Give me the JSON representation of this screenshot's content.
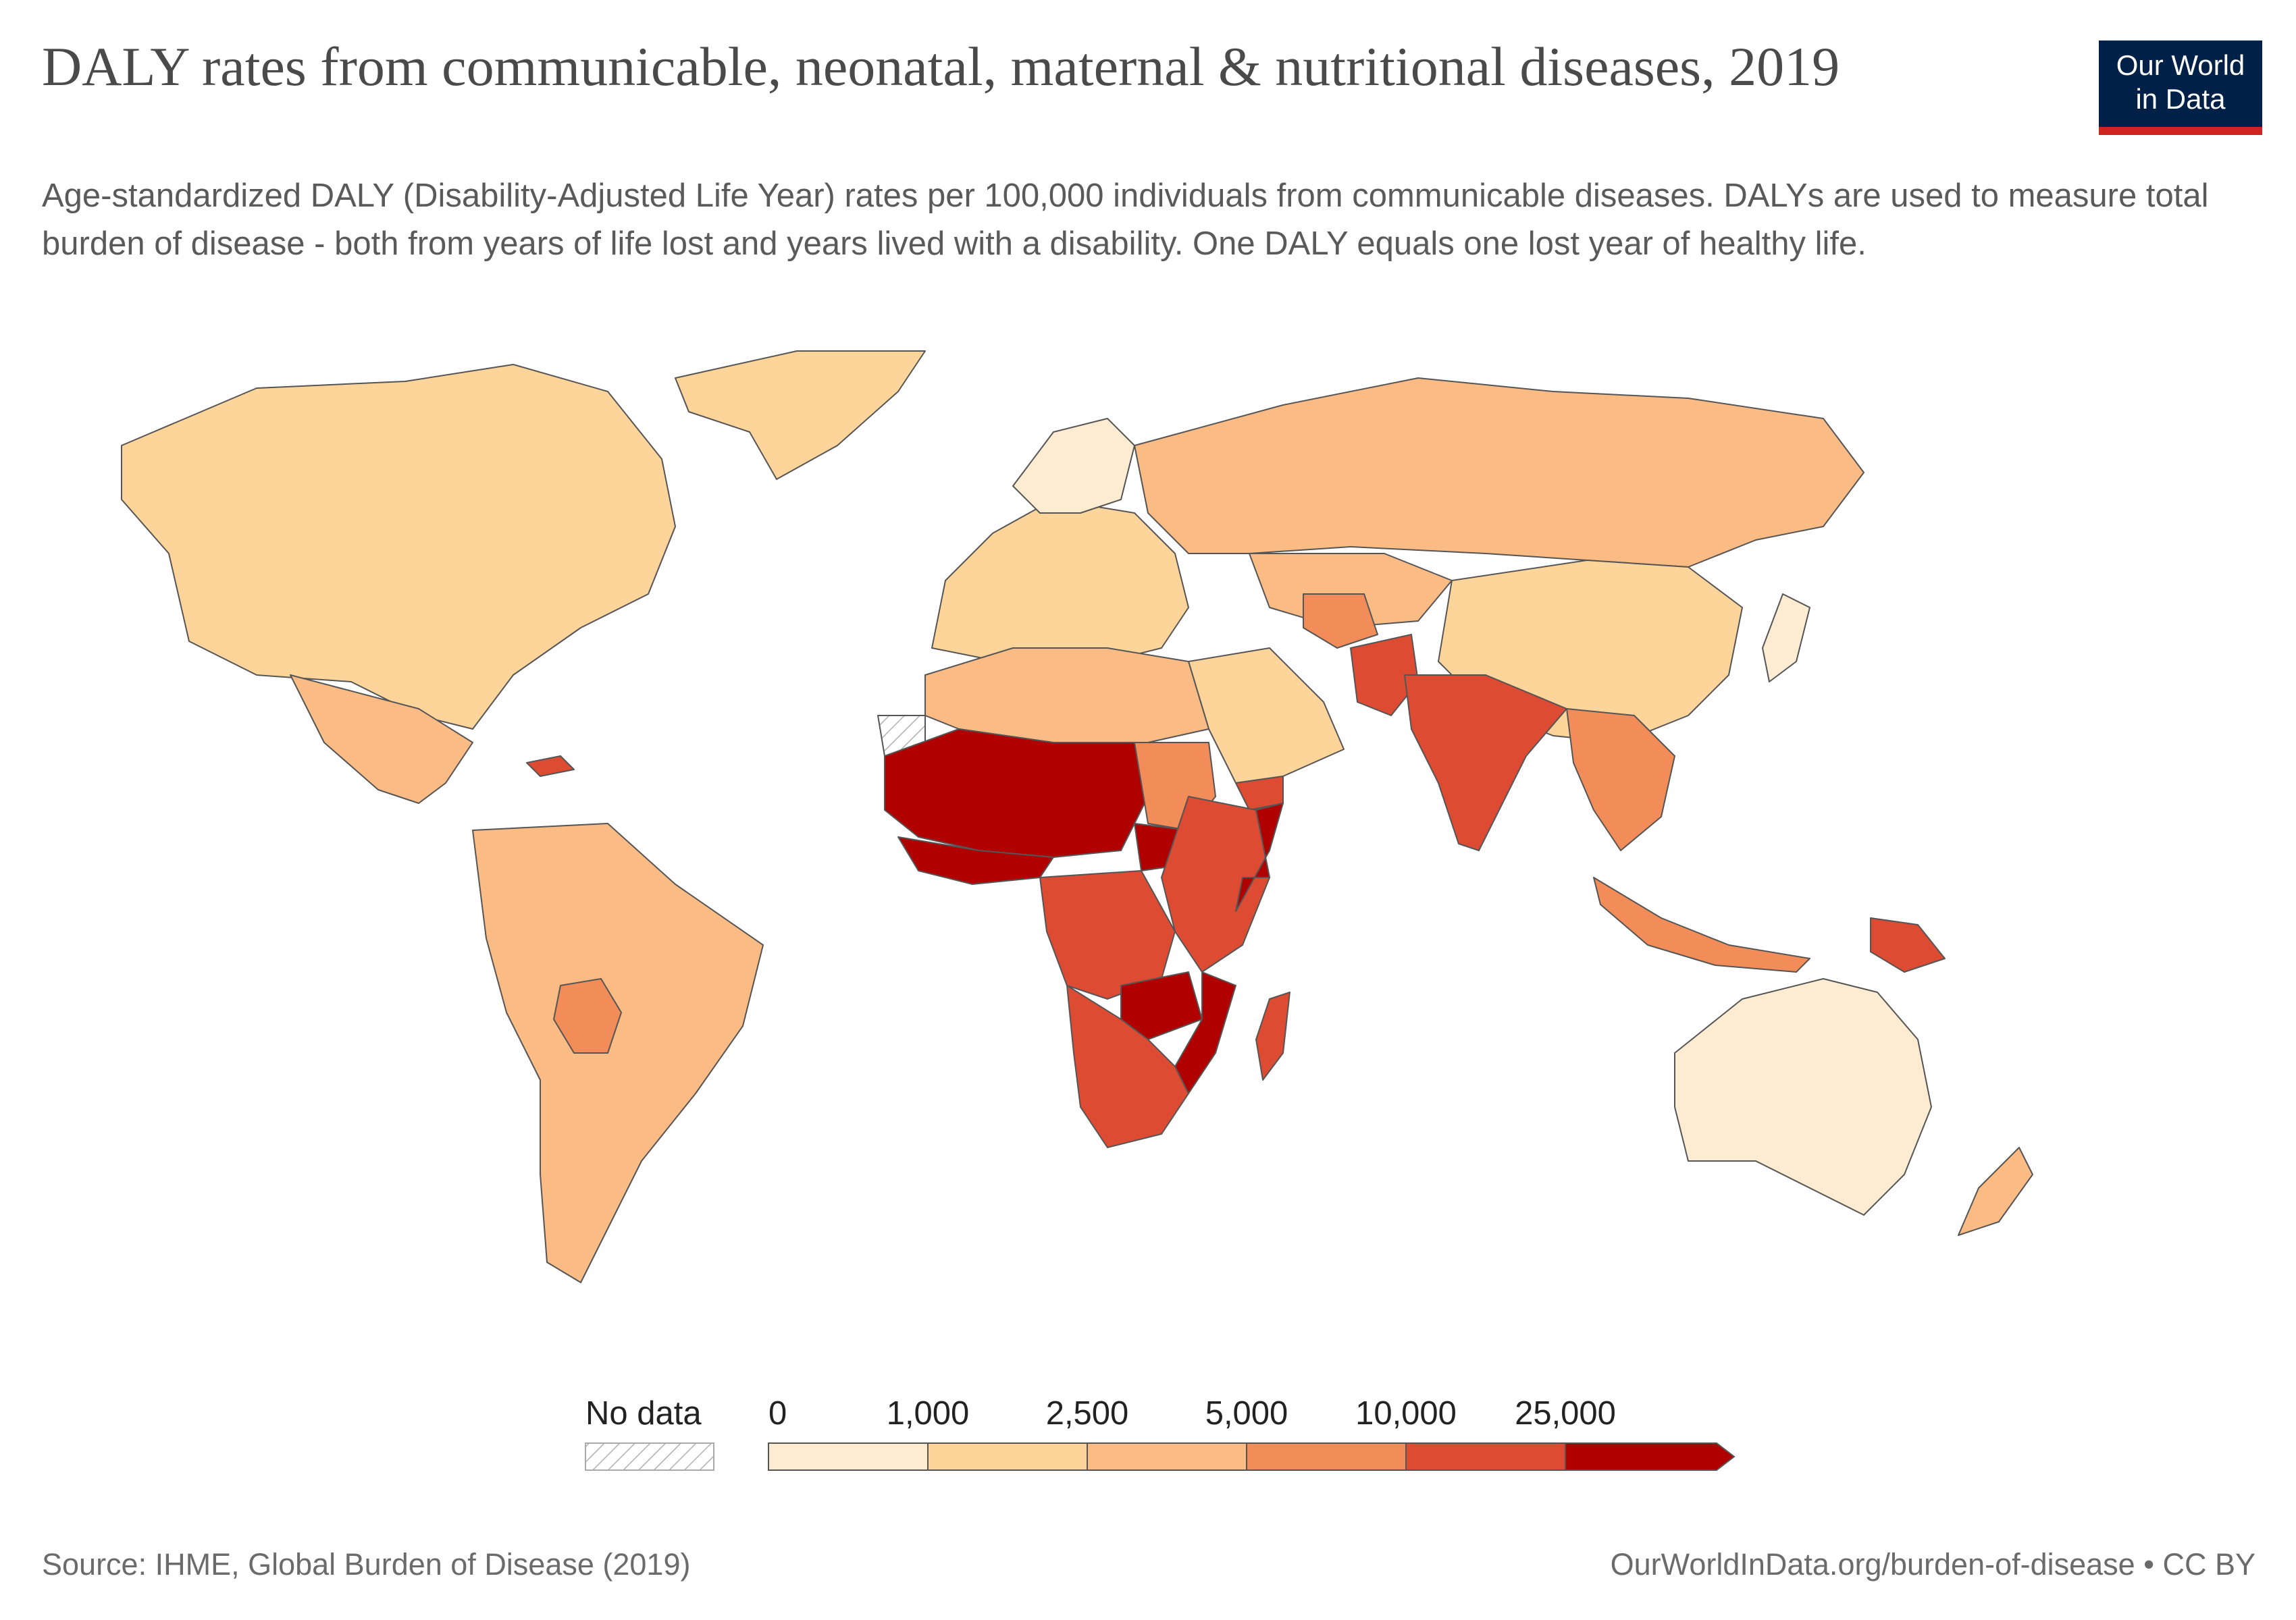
{
  "header": {
    "title": "DALY rates from communicable, neonatal, maternal & nutritional diseases, 2019",
    "subtitle": "Age-standardized DALY (Disability-Adjusted Life Year) rates per 100,000 individuals from communicable diseases. DALYs are used to measure total burden of disease - both from years of life lost and years lived with a disability. One DALY equals one lost year of healthy life."
  },
  "logo": {
    "line1": "Our World",
    "line2": "in Data",
    "bg_color": "#002147",
    "accent_color": "#ce261e"
  },
  "legend": {
    "no_data_label": "No data",
    "ticks": [
      "0",
      "1,000",
      "2,500",
      "5,000",
      "10,000",
      "25,000"
    ],
    "bins": [
      {
        "from": 0,
        "to": 1000,
        "color": "#fdebd2"
      },
      {
        "from": 1000,
        "to": 2500,
        "color": "#fdd59b"
      },
      {
        "from": 2500,
        "to": 5000,
        "color": "#fbbb84"
      },
      {
        "from": 5000,
        "to": 10000,
        "color": "#f28c58"
      },
      {
        "from": 10000,
        "to": 25000,
        "color": "#dd4b32"
      },
      {
        "from": 25000,
        "to": null,
        "color": "#b10000"
      }
    ]
  },
  "map_data": {
    "regions": [
      {
        "name": "Australia",
        "bin": 0
      },
      {
        "name": "Northern Europe",
        "bin": 0
      },
      {
        "name": "Japan",
        "bin": 0
      },
      {
        "name": "North America",
        "bin": 1
      },
      {
        "name": "Greenland",
        "bin": 1
      },
      {
        "name": "Europe",
        "bin": 1
      },
      {
        "name": "China",
        "bin": 1
      },
      {
        "name": "Arabian Peninsula",
        "bin": 1
      },
      {
        "name": "New Zealand",
        "bin": 2
      },
      {
        "name": "Russia",
        "bin": 2
      },
      {
        "name": "Central Asia",
        "bin": 2
      },
      {
        "name": "South America",
        "bin": 2
      },
      {
        "name": "Mexico",
        "bin": 2
      },
      {
        "name": "North Africa",
        "bin": 2
      },
      {
        "name": "Bolivia",
        "bin": 3
      },
      {
        "name": "Sudan",
        "bin": 3
      },
      {
        "name": "Indonesia",
        "bin": 3
      },
      {
        "name": "Southeast Asia",
        "bin": 3
      },
      {
        "name": "Afghanistan",
        "bin": 3
      },
      {
        "name": "India",
        "bin": 4
      },
      {
        "name": "Pakistan",
        "bin": 4
      },
      {
        "name": "East Africa",
        "bin": 4
      },
      {
        "name": "Central Africa",
        "bin": 4
      },
      {
        "name": "Southern Africa",
        "bin": 4
      },
      {
        "name": "Madagascar",
        "bin": 4
      },
      {
        "name": "Papua New Guinea",
        "bin": 4
      },
      {
        "name": "Yemen",
        "bin": 4
      },
      {
        "name": "Haiti",
        "bin": 4
      },
      {
        "name": "Sahel",
        "bin": 5
      },
      {
        "name": "West Africa",
        "bin": 5
      },
      {
        "name": "Somalia",
        "bin": 5
      },
      {
        "name": "Mozambique",
        "bin": 5
      },
      {
        "name": "Zambia",
        "bin": 5
      },
      {
        "name": "South Sudan",
        "bin": 5
      },
      {
        "name": "Western Sahara",
        "bin": -1
      }
    ]
  },
  "footer": {
    "source": "Source: IHME, Global Burden of Disease (2019)",
    "credit": "OurWorldInData.org/burden-of-disease • CC BY"
  }
}
